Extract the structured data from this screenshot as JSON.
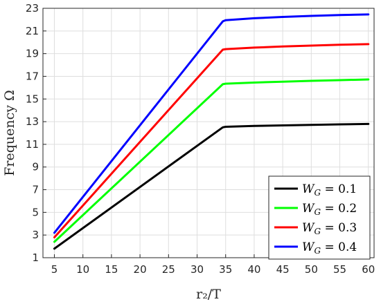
{
  "chart_data": {
    "type": "line",
    "xlabel": "r₂/T",
    "ylabel": "Frequency Ω",
    "xlim": [
      3,
      61
    ],
    "ylim": [
      1,
      23
    ],
    "xticks": [
      5,
      10,
      15,
      20,
      25,
      30,
      35,
      40,
      45,
      50,
      55,
      60
    ],
    "yticks": [
      1,
      3,
      5,
      7,
      9,
      11,
      13,
      15,
      17,
      19,
      21,
      23
    ],
    "grid": true,
    "legend_position": "bottom-right",
    "series": [
      {
        "name": "W_G = 0.1",
        "label_base": "W",
        "label_sub": "G",
        "label_value": " = 0.1",
        "color": "#000000",
        "x": [
          5,
          34.5,
          35,
          40,
          45,
          50,
          55,
          60
        ],
        "y": [
          1.8,
          12.5,
          12.55,
          12.62,
          12.67,
          12.72,
          12.76,
          12.8
        ]
      },
      {
        "name": "W_G = 0.2",
        "label_base": "W",
        "label_sub": "G",
        "label_value": " = 0.2",
        "color": "#00ff00",
        "x": [
          5,
          34.5,
          35,
          40,
          45,
          50,
          55,
          60
        ],
        "y": [
          2.4,
          16.3,
          16.35,
          16.45,
          16.53,
          16.6,
          16.66,
          16.72
        ]
      },
      {
        "name": "W_G = 0.3",
        "label_base": "W",
        "label_sub": "G",
        "label_value": " = 0.3",
        "color": "#ff0000",
        "x": [
          5,
          34.5,
          35,
          40,
          45,
          50,
          55,
          60
        ],
        "y": [
          2.8,
          19.35,
          19.4,
          19.53,
          19.63,
          19.71,
          19.78,
          19.84
        ]
      },
      {
        "name": "W_G = 0.4",
        "label_base": "W",
        "label_sub": "G",
        "label_value": " = 0.4",
        "color": "#0000ff",
        "x": [
          5,
          34.5,
          35,
          40,
          45,
          50,
          55,
          60
        ],
        "y": [
          3.2,
          21.85,
          21.95,
          22.12,
          22.24,
          22.33,
          22.4,
          22.46
        ]
      }
    ]
  }
}
